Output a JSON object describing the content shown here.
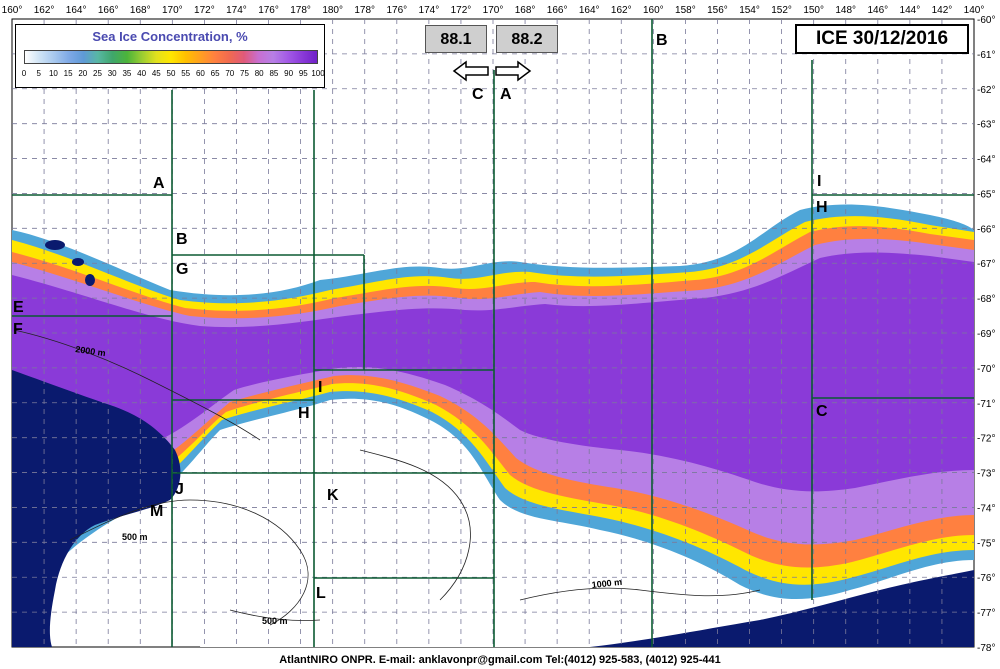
{
  "title": "ICE 30/12/2016",
  "legend": {
    "title": "Sea Ice Concentration, %",
    "ticks": [
      "0",
      "5",
      "10",
      "15",
      "20",
      "25",
      "30",
      "35",
      "40",
      "45",
      "50",
      "55",
      "60",
      "65",
      "70",
      "75",
      "80",
      "85",
      "90",
      "95",
      "100"
    ],
    "colors": [
      "#ffffff",
      "#cfe3f5",
      "#a7c8ee",
      "#7fa9e6",
      "#5f9ad6",
      "#58b7a3",
      "#3fa66b",
      "#4cb43a",
      "#9acd32",
      "#e1e11e",
      "#ffe600",
      "#ffc000",
      "#ffa020",
      "#ff8040",
      "#f06a50",
      "#e05a7a",
      "#c86fd0",
      "#b77fe6",
      "#a35ae6",
      "#8a3ad8",
      "#7020c8"
    ]
  },
  "top_axis_labels": [
    "160°",
    "162°",
    "164°",
    "166°",
    "168°",
    "170°",
    "172°",
    "174°",
    "176°",
    "178°",
    "180°",
    "178°",
    "176°",
    "174°",
    "172°",
    "170°",
    "168°",
    "166°",
    "164°",
    "162°",
    "160°",
    "158°",
    "156°",
    "154°",
    "152°",
    "150°",
    "148°",
    "146°",
    "144°",
    "142°",
    "140°"
  ],
  "right_axis_labels": [
    "-60°",
    "-61°",
    "-62°",
    "-63°",
    "-64°",
    "-65°",
    "-66°",
    "-67°",
    "-68°",
    "-69°",
    "-70°",
    "-71°",
    "-72°",
    "-73°",
    "-74°",
    "-75°",
    "-76°",
    "-77°",
    "-78°"
  ],
  "value_boxes": {
    "left": "88.1",
    "right": "88.2"
  },
  "arrow_labels": {
    "left": "C",
    "right": "A"
  },
  "zone_labels": [
    "A",
    "B",
    "G",
    "E",
    "F",
    "I",
    "H",
    "H",
    "C",
    "J",
    "M",
    "K",
    "L",
    "B",
    "I"
  ],
  "contour_labels": [
    "2000 m",
    "500 m",
    "500 m",
    "1000 m"
  ],
  "footer": "AtlantNIRO ONPR. E-mail: anklavonpr@gmail.com Tel:(4012) 925-583,  (4012) 925-441",
  "colors": {
    "land": "#0a1a6e",
    "grid": "#808080",
    "zone_line": "#0b5a32",
    "ice_high": "#8a3ad8",
    "ice_mid": "#ff9020",
    "ice_low": "#4cb43a"
  }
}
